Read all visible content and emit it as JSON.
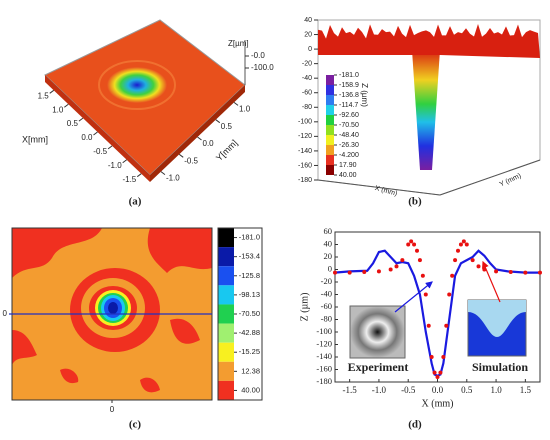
{
  "chart_data": [
    {
      "type": "surface3d",
      "panel_label": "(a)",
      "x_label": "X[mm]",
      "y_label": "Y[mm]",
      "z_label": "Z[µm]",
      "xlim": [
        -1.8,
        1.8
      ],
      "xticks": [
        1.5,
        {
          "value": 1.0,
          "label": "1.0"
        },
        0.5,
        {
          "value": 0,
          "label": "0.0"
        },
        -0.5,
        {
          "value": -1.0,
          "label": "-1.0"
        },
        -1.5
      ],
      "ylim": [
        -1.3,
        1.3
      ],
      "yticks": [
        {
          "value": 1.0,
          "label": "1.0"
        },
        0.5,
        {
          "value": 0,
          "label": "0.0"
        },
        -0.5,
        {
          "value": -1.0,
          "label": "-1.0"
        }
      ],
      "zticks": [
        {
          "value": 0,
          "label": "-0.0"
        },
        {
          "value": -100,
          "label": "-100.0"
        }
      ]
    },
    {
      "type": "surface3d",
      "panel_label": "(b)",
      "x_label": "X (mm)",
      "y_label": "Y (mm)",
      "z_label": "Z (µm)",
      "zlim": [
        -180,
        40
      ],
      "zticks": [
        40,
        20,
        0,
        -20,
        -40,
        -60,
        -80,
        -100,
        -120,
        -140,
        -160,
        -180
      ],
      "colorbar": [
        {
          "value": -181,
          "label": "-181.0"
        },
        -158.9,
        -136.8,
        -114.7,
        {
          "value": -92.6,
          "label": "-92.60"
        },
        {
          "value": -70.5,
          "label": "-70.50"
        },
        {
          "value": -48.4,
          "label": "-48.40"
        },
        {
          "value": -26.3,
          "label": "-26.30"
        },
        {
          "value": -4.2,
          "label": "-4.200"
        },
        {
          "value": 17.9,
          "label": "17.90"
        },
        {
          "value": 40,
          "label": "40.00"
        }
      ],
      "colors": [
        "#7a1fa0",
        "#3030e0",
        "#2f7cf0",
        "#20d0e8",
        "#20d040",
        "#90e020",
        "#f0f020",
        "#f0a020",
        "#e83020",
        "#8a0000"
      ]
    },
    {
      "type": "contour",
      "panel_label": "(c)",
      "xlim": [
        -1.75,
        1.75
      ],
      "xticks": [
        0
      ],
      "ylim": [
        -1.5,
        1.5
      ],
      "yticks": [
        0
      ],
      "levels": [
        {
          "value": -181,
          "label": "-181.0"
        },
        -153.4,
        -125.8,
        -98.13,
        {
          "value": -70.5,
          "label": "-70.50"
        },
        -42.88,
        -15.25,
        12.38,
        {
          "value": 40,
          "label": "40.00"
        }
      ],
      "colors": [
        "#000000",
        "#0a1aa8",
        "#1a50f0",
        "#18c8f0",
        "#20d050",
        "#a0f070",
        "#f8f020",
        "#f39c30",
        "#f03020"
      ]
    },
    {
      "type": "line",
      "panel_label": "(d)",
      "x_label": "X (mm)",
      "y_label": "Z (µm)",
      "xlim": [
        -1.75,
        1.75
      ],
      "xticks": [
        -1.5,
        {
          "value": -1.0,
          "label": "-1.0"
        },
        -0.5,
        {
          "value": 0,
          "label": "0.0"
        },
        0.5,
        {
          "value": 1.0,
          "label": "1.0"
        },
        1.5
      ],
      "ylim": [
        -180,
        60
      ],
      "yticks": [
        -180,
        -160,
        -140,
        -120,
        -100,
        -80,
        -60,
        -40,
        -20,
        0,
        20,
        40,
        60
      ],
      "series": [
        {
          "name": "Experiment",
          "color": "#1a1ae0",
          "style": "line",
          "x": [
            -1.75,
            -1.5,
            -1.2,
            -1.1,
            -1.0,
            -0.9,
            -0.8,
            -0.7,
            -0.6,
            -0.5,
            -0.4,
            -0.3,
            -0.2,
            -0.1,
            -0.05,
            0,
            0.05,
            0.1,
            0.2,
            0.3,
            0.4,
            0.5,
            0.6,
            0.7,
            0.8,
            0.9,
            1.0,
            1.2,
            1.5,
            1.75
          ],
          "values": [
            -5,
            -3,
            -2,
            10,
            28,
            30,
            20,
            10,
            12,
            10,
            -10,
            -40,
            -100,
            -150,
            -168,
            -170,
            -168,
            -150,
            -80,
            -10,
            10,
            15,
            20,
            30,
            22,
            10,
            0,
            -3,
            -5,
            -5
          ]
        },
        {
          "name": "Simulation",
          "color": "#e81010",
          "style": "dots",
          "x": [
            -1.75,
            -1.5,
            -1.25,
            -1.0,
            -0.8,
            -0.7,
            -0.6,
            -0.5,
            -0.45,
            -0.4,
            -0.35,
            -0.3,
            -0.25,
            -0.2,
            -0.15,
            -0.1,
            -0.05,
            0,
            0.05,
            0.1,
            0.15,
            0.2,
            0.25,
            0.3,
            0.35,
            0.4,
            0.45,
            0.5,
            0.6,
            0.7,
            0.8,
            1.0,
            1.25,
            1.5,
            1.75
          ],
          "values": [
            -5,
            -5,
            -4,
            -3,
            0,
            5,
            15,
            40,
            45,
            40,
            30,
            15,
            -10,
            -40,
            -90,
            -140,
            -165,
            -172,
            -165,
            -140,
            -90,
            -40,
            -10,
            15,
            30,
            40,
            45,
            40,
            15,
            5,
            0,
            -3,
            -4,
            -5,
            -5
          ]
        }
      ]
    }
  ]
}
